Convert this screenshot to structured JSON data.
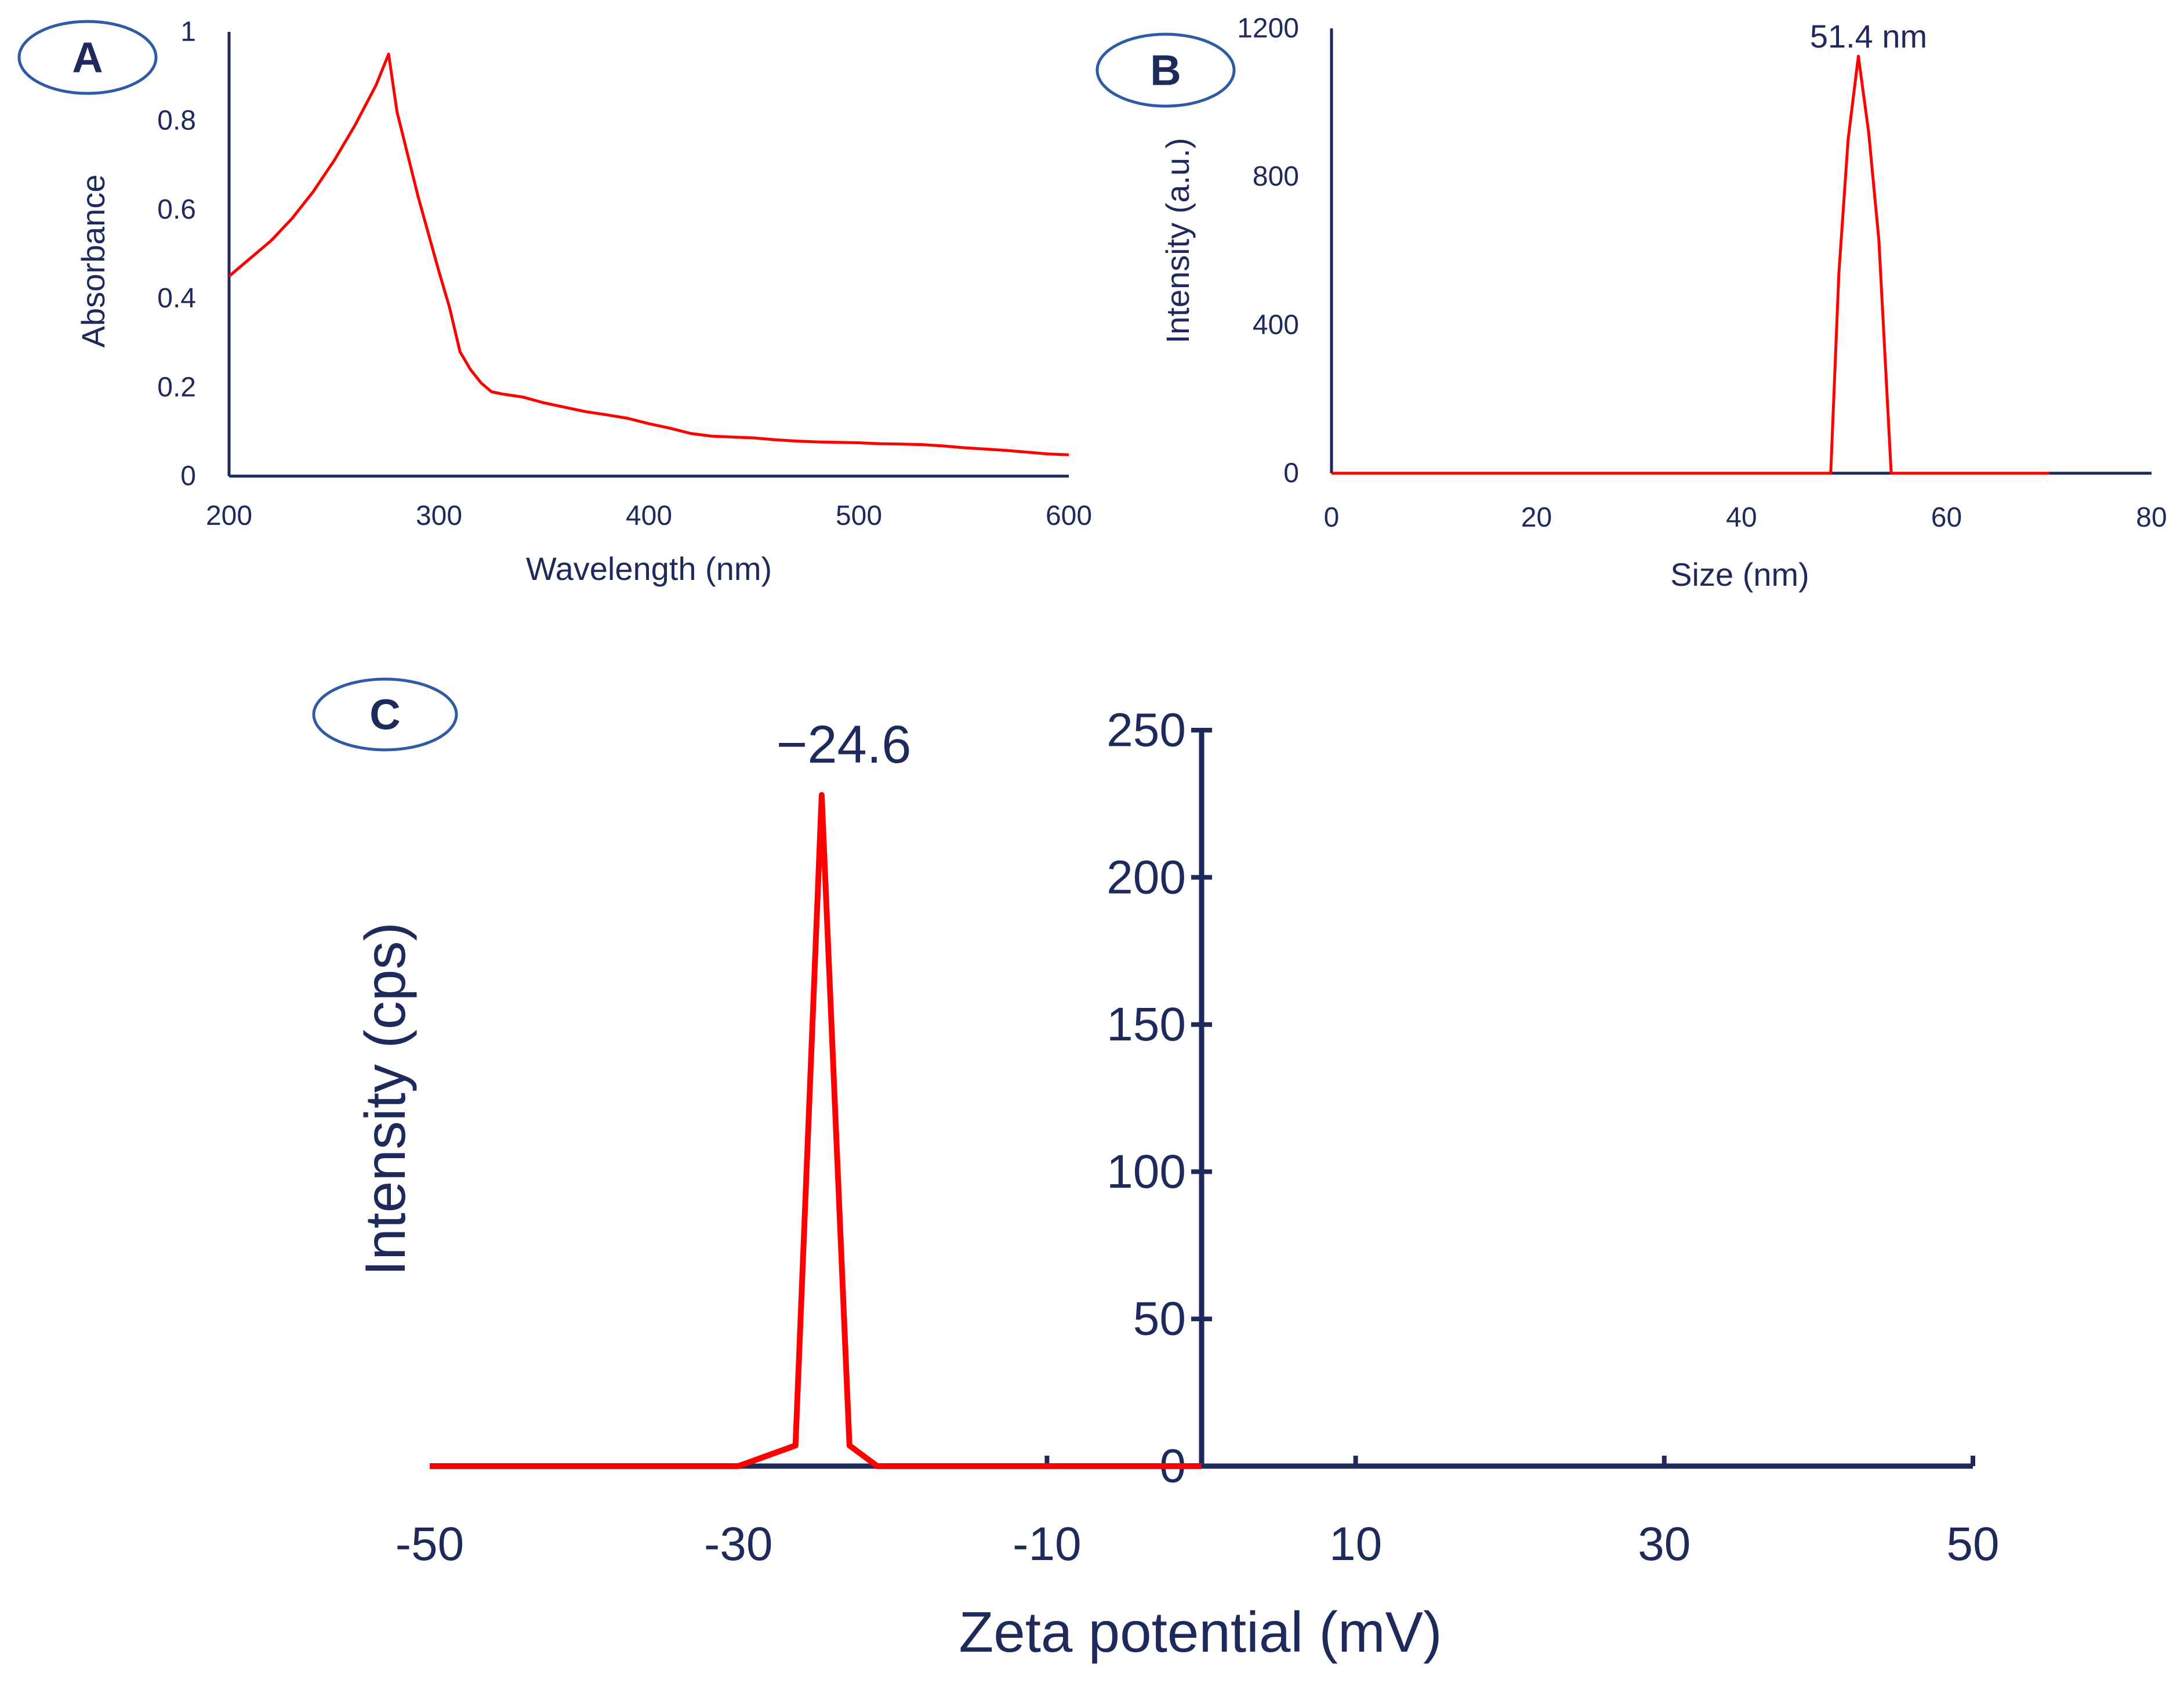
{
  "colors": {
    "axis": "#1f2a5c",
    "text": "#1f2a5c",
    "series": "#ff0000",
    "badge_border": "#2e5aa8",
    "background": "#ffffff"
  },
  "chart_data": [
    {
      "panel": "A",
      "type": "line",
      "xlabel": "Wavelength (nm)",
      "ylabel": "Absorbance",
      "xlim": [
        200,
        600
      ],
      "ylim": [
        0,
        1
      ],
      "xticks": [
        "200",
        "300",
        "400",
        "500",
        "600"
      ],
      "yticks": [
        "0",
        "0.2",
        "0.4",
        "0.6",
        "0.8",
        "1"
      ],
      "grid": false,
      "series": [
        {
          "name": "Absorbance",
          "x": [
            200,
            210,
            220,
            230,
            240,
            250,
            260,
            270,
            276,
            280,
            290,
            300,
            305,
            310,
            315,
            320,
            325,
            330,
            340,
            350,
            360,
            370,
            380,
            390,
            400,
            410,
            420,
            430,
            440,
            450,
            460,
            470,
            480,
            490,
            500,
            510,
            520,
            530,
            540,
            550,
            560,
            570,
            580,
            590,
            600
          ],
          "y": [
            0.45,
            0.49,
            0.53,
            0.58,
            0.64,
            0.71,
            0.79,
            0.88,
            0.95,
            0.82,
            0.63,
            0.46,
            0.38,
            0.28,
            0.24,
            0.21,
            0.19,
            0.185,
            0.178,
            0.165,
            0.155,
            0.145,
            0.138,
            0.13,
            0.118,
            0.108,
            0.096,
            0.09,
            0.088,
            0.086,
            0.082,
            0.079,
            0.077,
            0.076,
            0.075,
            0.073,
            0.072,
            0.071,
            0.068,
            0.064,
            0.061,
            0.058,
            0.054,
            0.05,
            0.048
          ]
        }
      ]
    },
    {
      "panel": "B",
      "type": "line",
      "xlabel": "Size (nm)",
      "ylabel": "Intensity (a.u.)",
      "xlim": [
        0,
        80
      ],
      "ylim": [
        0,
        1200
      ],
      "xticks": [
        "0",
        "20",
        "40",
        "60",
        "80"
      ],
      "yticks": [
        "0",
        "400",
        "800",
        "1200"
      ],
      "grid": false,
      "annotation": "51.4 nm",
      "series": [
        {
          "name": "Intensity",
          "x": [
            0,
            48.7,
            49.5,
            50.4,
            51.4,
            52.4,
            53.4,
            54.6,
            70
          ],
          "y": [
            0,
            0,
            540,
            900,
            1125,
            920,
            630,
            0,
            0
          ]
        }
      ]
    },
    {
      "panel": "C",
      "type": "line",
      "xlabel": "Zeta potential (mV)",
      "ylabel": "Intensity (cps)",
      "xlim": [
        -50,
        50
      ],
      "ylim": [
        0,
        250
      ],
      "xticks": [
        "-50",
        "-30",
        "-10",
        "10",
        "30",
        "50"
      ],
      "yticks": [
        "0",
        "50",
        "100",
        "150",
        "200",
        "250"
      ],
      "grid": false,
      "annotation": "−24.6",
      "series": [
        {
          "name": "Intensity",
          "x": [
            -50,
            -30,
            -26.3,
            -24.6,
            -22.8,
            -21,
            0
          ],
          "y": [
            0,
            0,
            7,
            228,
            7,
            0,
            0
          ]
        }
      ]
    }
  ]
}
